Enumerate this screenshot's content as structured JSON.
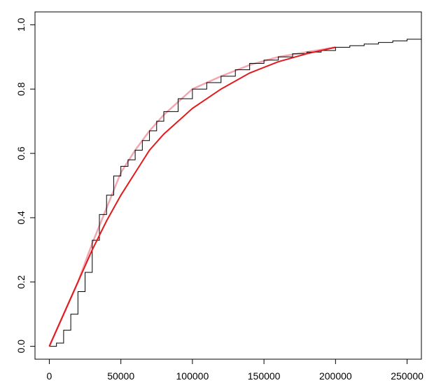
{
  "chart_data": {
    "type": "line",
    "xlim": [
      -10000,
      260000
    ],
    "ylim": [
      -0.04,
      1.04
    ],
    "xticks": [
      0,
      50000,
      100000,
      150000,
      200000,
      250000
    ],
    "yticks": [
      {
        "value": 0,
        "label": "0.0"
      },
      {
        "value": 0.2,
        "label": "0.2"
      },
      {
        "value": 0.4,
        "label": "0.4"
      },
      {
        "value": 0.6,
        "label": "0.6"
      },
      {
        "value": 0.8,
        "label": "0.8"
      },
      {
        "value": 1,
        "label": "1.0"
      }
    ],
    "series": [
      {
        "color": "#f4a6b0",
        "width": 2.5,
        "step": false,
        "x": [
          0,
          10000,
          20000,
          30000,
          40000,
          50000,
          60000,
          70000,
          80000,
          90000,
          100000,
          120000,
          140000,
          160000,
          180000,
          200000
        ],
        "values": [
          0,
          0.1,
          0.2,
          0.32,
          0.43,
          0.54,
          0.61,
          0.67,
          0.72,
          0.76,
          0.8,
          0.84,
          0.875,
          0.9,
          0.915,
          0.93
        ]
      },
      {
        "color": "#000000",
        "width": 1,
        "step": true,
        "x": [
          0,
          5000,
          10000,
          15000,
          20000,
          25000,
          30000,
          35000,
          40000,
          45000,
          50000,
          55000,
          60000,
          65000,
          70000,
          75000,
          80000,
          90000,
          100000,
          110000,
          120000,
          130000,
          140000,
          150000,
          160000,
          170000,
          180000,
          190000,
          200000,
          210000,
          220000,
          230000,
          240000,
          250000,
          260000
        ],
        "values": [
          0,
          0.01,
          0.05,
          0.1,
          0.17,
          0.23,
          0.33,
          0.41,
          0.47,
          0.53,
          0.56,
          0.58,
          0.61,
          0.64,
          0.67,
          0.7,
          0.73,
          0.77,
          0.8,
          0.82,
          0.84,
          0.86,
          0.88,
          0.89,
          0.9,
          0.91,
          0.915,
          0.92,
          0.93,
          0.935,
          0.94,
          0.945,
          0.95,
          0.955,
          0.96
        ]
      },
      {
        "color": "#e31a1c",
        "width": 2,
        "step": false,
        "x": [
          0,
          10000,
          20000,
          30000,
          40000,
          50000,
          60000,
          70000,
          80000,
          90000,
          100000,
          120000,
          140000,
          160000,
          180000,
          200000
        ],
        "values": [
          0,
          0.1,
          0.2,
          0.3,
          0.39,
          0.47,
          0.54,
          0.61,
          0.66,
          0.7,
          0.74,
          0.8,
          0.85,
          0.885,
          0.91,
          0.93
        ]
      }
    ]
  }
}
